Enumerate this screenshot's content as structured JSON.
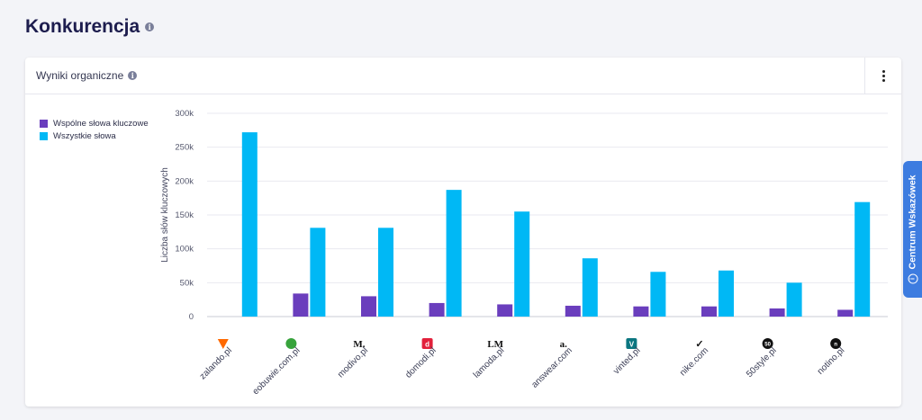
{
  "page": {
    "title": "Konkurencja"
  },
  "card": {
    "title": "Wyniki organiczne"
  },
  "side_tab": {
    "label": "Centrum Wskazówek"
  },
  "colors": {
    "common": "#6a3ebd",
    "all": "#00b8f5",
    "accent": "#3d7ce0"
  },
  "chart_data": {
    "type": "bar",
    "ylabel": "Liczba słów kluczowych",
    "xlabel": "",
    "ylim": [
      0,
      300000
    ],
    "yticks": [
      0,
      50000,
      100000,
      150000,
      200000,
      250000,
      300000
    ],
    "ytick_labels": [
      "0",
      "50k",
      "100k",
      "150k",
      "200k",
      "250k",
      "300k"
    ],
    "categories": [
      "zalando.pl",
      "eobuwie.com.pl",
      "modivo.pl",
      "domodi.pl",
      "lamoda.pl",
      "answear.com",
      "vinted.pl",
      "nike.com",
      "50style.pl",
      "notino.pl"
    ],
    "category_icons": [
      "zalando-icon",
      "eobuwie-icon",
      "modivo-icon",
      "domodi-icon",
      "lamoda-icon",
      "answear-icon",
      "vinted-icon",
      "nike-icon",
      "50style-icon",
      "notino-icon"
    ],
    "series": [
      {
        "name": "Wspólne słowa kluczowe",
        "color": "#6a3ebd",
        "values": [
          0,
          34000,
          30000,
          20000,
          18000,
          16000,
          15000,
          15000,
          12000,
          10000
        ]
      },
      {
        "name": "Wszystkie słowa",
        "color": "#00b8f5",
        "values": [
          272000,
          131000,
          131000,
          187000,
          155000,
          86000,
          66000,
          68000,
          50000,
          169000
        ]
      }
    ],
    "legend_position": "top-left",
    "grid": true
  }
}
